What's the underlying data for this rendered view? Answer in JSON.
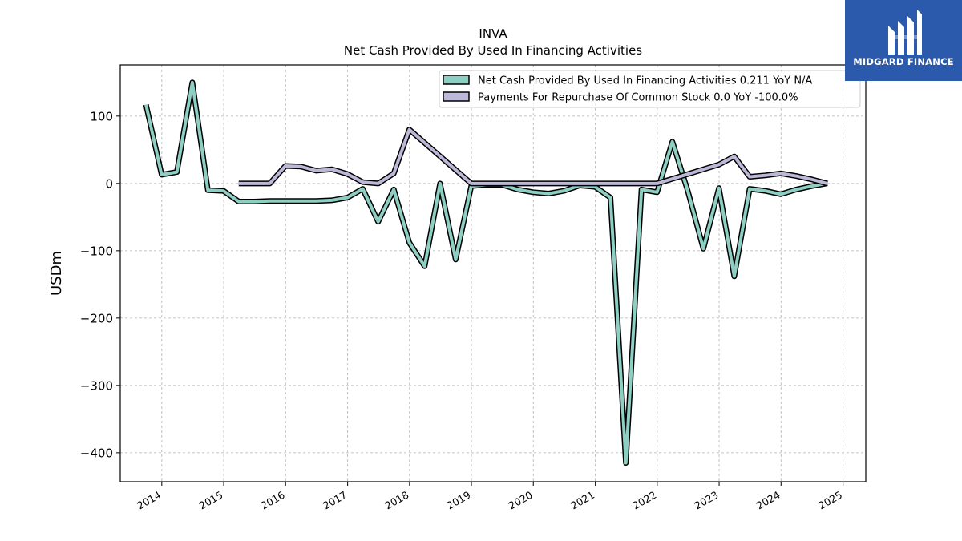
{
  "brand": {
    "name": "MIDGARD FINANCE",
    "logo_icon": "midgard-m-logo-icon",
    "background_color": "#2b5aad"
  },
  "chart_data": {
    "type": "line",
    "title": "INVA",
    "subtitle": "Net Cash Provided By Used In Financing Activities",
    "xlabel": "",
    "ylabel": "USDm",
    "x_ticks": [
      "2014",
      "2015",
      "2016",
      "2017",
      "2018",
      "2019",
      "2020",
      "2021",
      "2022",
      "2023",
      "2024",
      "2025"
    ],
    "y_ticks": [
      100,
      0,
      -100,
      -200,
      -300,
      -400
    ],
    "y_tick_labels": [
      "100",
      "0",
      "−100",
      "−200",
      "−300",
      "−400"
    ],
    "xlim": [
      "2013-05-01",
      "2025-05-15"
    ],
    "ylim": [
      -443,
      176
    ],
    "grid": true,
    "legend_position": "top-right",
    "series": [
      {
        "name": "Net Cash Provided By Used In Financing Activities",
        "legend_label": "Net Cash Provided By Used In Financing Activities  0.211 YoY N/A",
        "color": "#8ecfc3",
        "points": [
          [
            "2013-09-30",
            117
          ],
          [
            "2013-12-31",
            13
          ],
          [
            "2014-03-31",
            17
          ],
          [
            "2014-06-30",
            150
          ],
          [
            "2014-09-30",
            -10
          ],
          [
            "2014-12-31",
            -11
          ],
          [
            "2015-03-31",
            -27
          ],
          [
            "2015-06-30",
            -27
          ],
          [
            "2015-09-30",
            -26
          ],
          [
            "2015-12-31",
            -26
          ],
          [
            "2016-03-31",
            -26
          ],
          [
            "2016-06-30",
            -26
          ],
          [
            "2016-09-30",
            -25
          ],
          [
            "2016-12-31",
            -21
          ],
          [
            "2017-03-31",
            -8
          ],
          [
            "2017-06-30",
            -57
          ],
          [
            "2017-09-30",
            -9
          ],
          [
            "2017-12-31",
            -88
          ],
          [
            "2018-03-31",
            -123
          ],
          [
            "2018-06-30",
            0
          ],
          [
            "2018-09-30",
            -113
          ],
          [
            "2018-12-31",
            -4
          ],
          [
            "2019-03-31",
            -2
          ],
          [
            "2019-06-30",
            -2
          ],
          [
            "2019-09-30",
            -9
          ],
          [
            "2019-12-31",
            -13
          ],
          [
            "2020-03-31",
            -15
          ],
          [
            "2020-06-30",
            -11
          ],
          [
            "2020-09-30",
            -3
          ],
          [
            "2020-12-31",
            -5
          ],
          [
            "2021-03-31",
            -21
          ],
          [
            "2021-06-30",
            -415
          ],
          [
            "2021-09-30",
            -9
          ],
          [
            "2021-12-31",
            -13
          ],
          [
            "2022-03-31",
            62
          ],
          [
            "2022-06-30",
            -11
          ],
          [
            "2022-09-30",
            -97
          ],
          [
            "2022-12-31",
            -7
          ],
          [
            "2023-03-31",
            -138
          ],
          [
            "2023-06-30",
            -8
          ],
          [
            "2023-09-30",
            -11
          ],
          [
            "2023-12-31",
            -16
          ],
          [
            "2024-03-31",
            -9
          ],
          [
            "2024-06-30",
            -4
          ],
          [
            "2024-09-30",
            0.211
          ]
        ]
      },
      {
        "name": "Payments For Repurchase Of Common Stock",
        "legend_label": "Payments For Repurchase Of Common Stock  0.0 YoY -100.0%",
        "color": "#bcb8d8",
        "points": [
          [
            "2015-03-31",
            0
          ],
          [
            "2015-06-30",
            0
          ],
          [
            "2015-09-30",
            0
          ],
          [
            "2015-12-31",
            26
          ],
          [
            "2016-03-31",
            25
          ],
          [
            "2016-06-30",
            19
          ],
          [
            "2016-09-30",
            21
          ],
          [
            "2016-12-31",
            14
          ],
          [
            "2017-03-31",
            2
          ],
          [
            "2017-06-30",
            0
          ],
          [
            "2017-09-30",
            15
          ],
          [
            "2017-12-31",
            80
          ],
          [
            "2018-12-31",
            0
          ],
          [
            "2021-12-31",
            0
          ],
          [
            "2022-12-31",
            28
          ],
          [
            "2023-03-31",
            40
          ],
          [
            "2023-06-30",
            10
          ],
          [
            "2023-09-30",
            12
          ],
          [
            "2023-12-31",
            15
          ],
          [
            "2024-03-31",
            11
          ],
          [
            "2024-06-30",
            6
          ],
          [
            "2024-09-30",
            0
          ]
        ]
      }
    ]
  }
}
